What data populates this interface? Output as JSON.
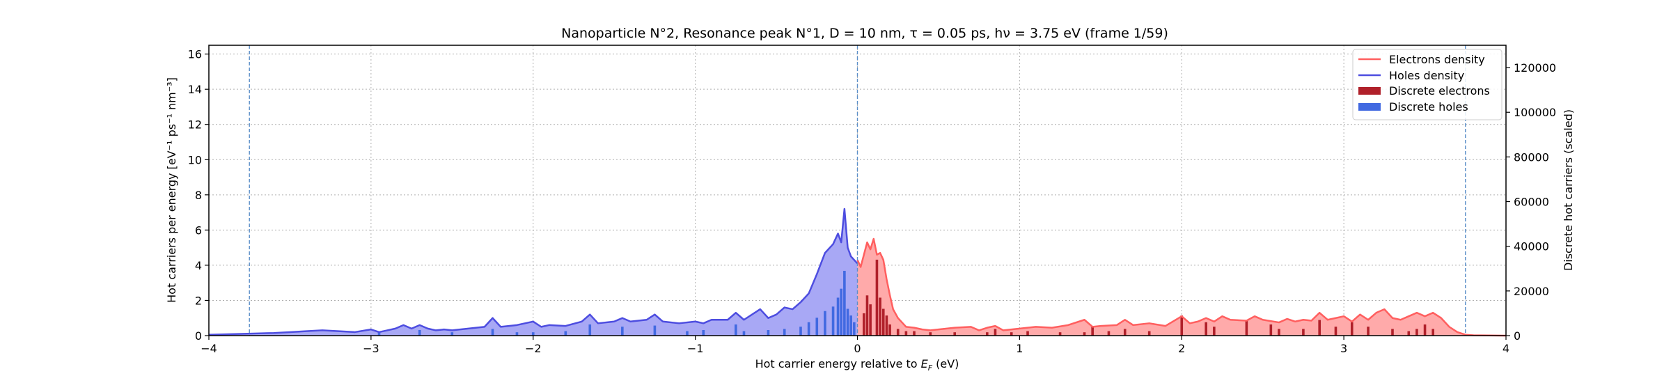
{
  "chart_data": {
    "type": "area",
    "title": "Nanoparticle N°2, Resonance peak N°1, D = 10 nm, τ = 0.05 ps, hν = 3.75 eV   (frame 1/59)",
    "xlabel": "Hot carrier energy relative to E_F (eV)",
    "ylabel": "Hot carriers per energy [eV⁻¹ ps⁻¹ nm⁻³]",
    "ylabel_right": "Discrete hot carriers (scaled)",
    "xlim": [
      -4,
      4
    ],
    "ylim": [
      0,
      16.5
    ],
    "ylim_right": [
      0,
      130000
    ],
    "x_ticks": [
      -4,
      -3,
      -2,
      -1,
      0,
      1,
      2,
      3,
      4
    ],
    "x_tick_labels": [
      "−4",
      "−3",
      "−2",
      "−1",
      "0",
      "1",
      "2",
      "3",
      "4"
    ],
    "y_ticks": [
      0,
      2,
      4,
      6,
      8,
      10,
      12,
      14,
      16
    ],
    "y_tick_labels": [
      "0",
      "2",
      "4",
      "6",
      "8",
      "10",
      "12",
      "14",
      "16"
    ],
    "y_right_ticks": [
      0,
      20000,
      40000,
      60000,
      80000,
      100000,
      120000
    ],
    "y_right_tick_labels": [
      "0",
      "20000",
      "40000",
      "60000",
      "80000",
      "100000",
      "120000"
    ],
    "grid": true,
    "legend_position": "top-right",
    "vlines": [
      -3.75,
      0,
      3.75
    ],
    "colors": {
      "electrons_line": "#ff5f5f",
      "electrons_fill": "#ffaaaa",
      "holes_line": "#4d4de0",
      "holes_fill": "#a8a8f5",
      "discrete_electrons": "#b0202a",
      "discrete_holes": "#4169e1",
      "vline": "#5b8fc9"
    },
    "series": [
      {
        "name": "Electrons density",
        "kind": "line",
        "x": [
          0.0,
          0.02,
          0.04,
          0.06,
          0.08,
          0.1,
          0.12,
          0.14,
          0.16,
          0.18,
          0.2,
          0.22,
          0.25,
          0.28,
          0.3,
          0.35,
          0.4,
          0.45,
          0.5,
          0.6,
          0.7,
          0.75,
          0.8,
          0.85,
          0.9,
          1.0,
          1.1,
          1.2,
          1.3,
          1.4,
          1.45,
          1.5,
          1.6,
          1.65,
          1.7,
          1.8,
          1.9,
          2.0,
          2.05,
          2.1,
          2.15,
          2.2,
          2.25,
          2.3,
          2.4,
          2.45,
          2.5,
          2.6,
          2.65,
          2.7,
          2.75,
          2.8,
          2.85,
          2.9,
          2.95,
          3.0,
          3.05,
          3.1,
          3.15,
          3.2,
          3.25,
          3.3,
          3.35,
          3.4,
          3.45,
          3.5,
          3.55,
          3.6,
          3.65,
          3.7,
          3.75,
          3.8,
          4.0
        ],
        "y": [
          4.3,
          3.9,
          4.6,
          5.3,
          4.9,
          5.5,
          4.6,
          4.7,
          4.3,
          3.2,
          2.3,
          1.5,
          1.0,
          0.7,
          0.5,
          0.45,
          0.35,
          0.3,
          0.35,
          0.45,
          0.5,
          0.3,
          0.45,
          0.55,
          0.3,
          0.4,
          0.5,
          0.45,
          0.6,
          0.9,
          0.5,
          0.55,
          0.6,
          0.9,
          0.6,
          0.7,
          0.55,
          1.1,
          0.7,
          0.8,
          1.0,
          0.8,
          1.1,
          0.9,
          0.85,
          1.1,
          0.9,
          0.75,
          0.95,
          0.8,
          0.9,
          0.85,
          1.3,
          0.9,
          1.0,
          1.1,
          0.8,
          1.2,
          0.9,
          1.3,
          1.5,
          1.0,
          0.9,
          1.1,
          1.3,
          1.1,
          1.3,
          1.0,
          0.5,
          0.2,
          0.05,
          0.02,
          0.0
        ]
      },
      {
        "name": "Holes density",
        "kind": "line",
        "x": [
          -4.0,
          -3.8,
          -3.6,
          -3.5,
          -3.4,
          -3.3,
          -3.2,
          -3.1,
          -3.0,
          -2.95,
          -2.9,
          -2.85,
          -2.8,
          -2.75,
          -2.7,
          -2.65,
          -2.6,
          -2.55,
          -2.5,
          -2.4,
          -2.3,
          -2.25,
          -2.2,
          -2.1,
          -2.0,
          -1.95,
          -1.9,
          -1.8,
          -1.7,
          -1.65,
          -1.6,
          -1.5,
          -1.45,
          -1.4,
          -1.3,
          -1.25,
          -1.2,
          -1.1,
          -1.0,
          -0.95,
          -0.9,
          -0.8,
          -0.75,
          -0.7,
          -0.6,
          -0.55,
          -0.5,
          -0.45,
          -0.4,
          -0.35,
          -0.3,
          -0.25,
          -0.2,
          -0.15,
          -0.12,
          -0.1,
          -0.08,
          -0.06,
          -0.04,
          -0.02,
          0.0
        ],
        "y": [
          0.05,
          0.1,
          0.15,
          0.2,
          0.25,
          0.3,
          0.25,
          0.2,
          0.35,
          0.2,
          0.3,
          0.4,
          0.6,
          0.4,
          0.6,
          0.4,
          0.3,
          0.35,
          0.3,
          0.4,
          0.5,
          1.0,
          0.5,
          0.6,
          0.8,
          0.5,
          0.6,
          0.55,
          0.8,
          1.2,
          0.7,
          0.8,
          1.0,
          0.8,
          0.9,
          1.2,
          0.8,
          0.7,
          0.8,
          0.7,
          0.9,
          0.9,
          1.3,
          0.9,
          1.5,
          1.0,
          1.2,
          1.6,
          1.5,
          1.9,
          2.4,
          3.5,
          4.7,
          5.2,
          5.8,
          5.3,
          7.2,
          5.0,
          4.5,
          4.3,
          4.1
        ]
      },
      {
        "name": "Discrete electrons",
        "kind": "bar",
        "x": [
          0.04,
          0.06,
          0.08,
          0.12,
          0.14,
          0.16,
          0.18,
          0.2,
          0.25,
          0.3,
          0.35,
          0.45,
          0.6,
          0.8,
          0.85,
          0.95,
          1.05,
          1.25,
          1.4,
          1.45,
          1.55,
          1.65,
          1.8,
          2.0,
          2.15,
          2.2,
          2.4,
          2.55,
          2.6,
          2.75,
          2.85,
          2.95,
          3.05,
          3.15,
          3.3,
          3.4,
          3.45,
          3.5,
          3.55
        ],
        "y": [
          10000,
          18000,
          14000,
          34000,
          17000,
          12000,
          9000,
          5000,
          3000,
          2000,
          2000,
          1500,
          1500,
          1500,
          3000,
          1500,
          2000,
          1500,
          1500,
          4000,
          2000,
          3000,
          2000,
          9000,
          6000,
          4000,
          7000,
          5000,
          3000,
          3000,
          7000,
          4000,
          6000,
          4000,
          3000,
          2000,
          3000,
          5000,
          3000
        ]
      },
      {
        "name": "Discrete holes",
        "kind": "bar",
        "x": [
          -2.95,
          -2.7,
          -2.5,
          -2.25,
          -2.1,
          -2.0,
          -1.8,
          -1.65,
          -1.45,
          -1.25,
          -1.05,
          -0.95,
          -0.75,
          -0.7,
          -0.55,
          -0.45,
          -0.35,
          -0.3,
          -0.25,
          -0.2,
          -0.15,
          -0.12,
          -0.1,
          -0.08,
          -0.06,
          -0.04,
          -0.02
        ],
        "y": [
          1500,
          2500,
          1500,
          3000,
          1500,
          1500,
          2000,
          5000,
          4000,
          4500,
          2000,
          2500,
          5000,
          2000,
          2500,
          3000,
          4000,
          6000,
          8000,
          11000,
          13000,
          17000,
          21000,
          29000,
          12000,
          9000,
          6000
        ]
      }
    ]
  }
}
